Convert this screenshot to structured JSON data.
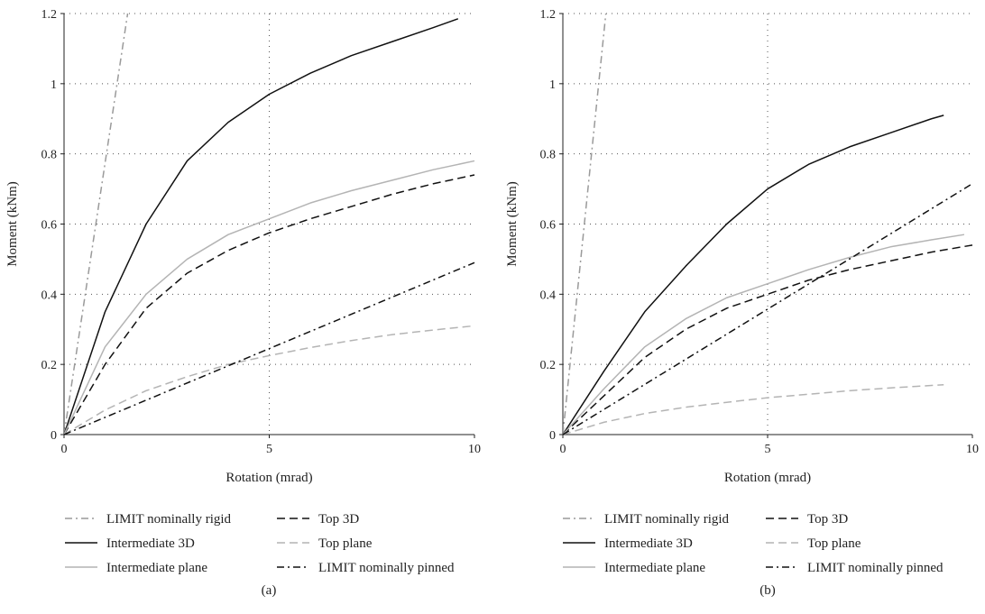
{
  "chart_data": [
    {
      "type": "line",
      "panel_label": "(a)",
      "xlabel": "Rotation (mrad)",
      "ylabel": "Moment (kNm)",
      "xlim": [
        0,
        10
      ],
      "ylim": [
        0,
        1.2
      ],
      "x_ticks": [
        "0",
        "5",
        "10"
      ],
      "y_ticks": [
        "0",
        "0.2",
        "0.4",
        "0.6",
        "0.8",
        "1",
        "1.2"
      ],
      "grid": "dotted at x = 5 and every 0.2 on y",
      "legend_placement": "below",
      "series": [
        {
          "name": "LIMIT nominally rigid",
          "color": "#9a9a9a",
          "dash": "dash-dot",
          "x": [
            0,
            1.55
          ],
          "y": [
            0,
            1.2
          ]
        },
        {
          "name": "Top 3D",
          "color": "#111111",
          "dash": "dashed",
          "x": [
            0,
            1,
            2,
            3,
            4,
            5,
            6,
            7,
            8,
            9,
            10
          ],
          "y": [
            0,
            0.2,
            0.36,
            0.46,
            0.525,
            0.575,
            0.615,
            0.65,
            0.685,
            0.715,
            0.74
          ]
        },
        {
          "name": "Intermediate 3D",
          "color": "#111111",
          "dash": "solid",
          "x": [
            0,
            1,
            2,
            3,
            4,
            5,
            6,
            7,
            8,
            9,
            9.6
          ],
          "y": [
            0,
            0.35,
            0.6,
            0.78,
            0.89,
            0.97,
            1.03,
            1.08,
            1.12,
            1.16,
            1.185
          ]
        },
        {
          "name": "Top plane",
          "color": "#b4b4b4",
          "dash": "dashed",
          "x": [
            0,
            1,
            2,
            3,
            4,
            5,
            6,
            7,
            8,
            9,
            10
          ],
          "y": [
            0,
            0.07,
            0.125,
            0.165,
            0.2,
            0.225,
            0.248,
            0.268,
            0.285,
            0.298,
            0.31
          ]
        },
        {
          "name": "Intermediate plane",
          "color": "#b4b4b4",
          "dash": "solid",
          "x": [
            0,
            1,
            2,
            3,
            4,
            5,
            6,
            7,
            8,
            9,
            10
          ],
          "y": [
            0,
            0.25,
            0.4,
            0.5,
            0.57,
            0.615,
            0.66,
            0.695,
            0.725,
            0.755,
            0.78
          ]
        },
        {
          "name": "LIMIT nominally pinned",
          "color": "#111111",
          "dash": "dash-dot",
          "x": [
            0,
            10
          ],
          "y": [
            0,
            0.49
          ]
        }
      ]
    },
    {
      "type": "line",
      "panel_label": "(b)",
      "xlabel": "Rotation (mrad)",
      "ylabel": "Moment (kNm)",
      "xlim": [
        0,
        10
      ],
      "ylim": [
        0,
        1.2
      ],
      "x_ticks": [
        "0",
        "5",
        "10"
      ],
      "y_ticks": [
        "0",
        "0.2",
        "0.4",
        "0.6",
        "0.8",
        "1",
        "1.2"
      ],
      "grid": "dotted at x = 5 and every 0.2 on y",
      "legend_placement": "below",
      "series": [
        {
          "name": "LIMIT nominally rigid",
          "color": "#9a9a9a",
          "dash": "dash-dot",
          "x": [
            0,
            1.05
          ],
          "y": [
            0,
            1.2
          ]
        },
        {
          "name": "Top 3D",
          "color": "#111111",
          "dash": "dashed",
          "x": [
            0,
            1,
            2,
            3,
            4,
            5,
            6,
            7,
            8,
            9,
            10
          ],
          "y": [
            0,
            0.11,
            0.22,
            0.3,
            0.36,
            0.4,
            0.44,
            0.47,
            0.495,
            0.52,
            0.54
          ]
        },
        {
          "name": "Intermediate 3D",
          "color": "#111111",
          "dash": "solid",
          "x": [
            0,
            1,
            2,
            3,
            4,
            5,
            6,
            7,
            8,
            9,
            9.3
          ],
          "y": [
            0,
            0.18,
            0.35,
            0.48,
            0.6,
            0.7,
            0.77,
            0.82,
            0.86,
            0.9,
            0.91
          ]
        },
        {
          "name": "Top plane",
          "color": "#b4b4b4",
          "dash": "dashed",
          "x": [
            0,
            1,
            2,
            3,
            4,
            5,
            6,
            7,
            8,
            9,
            9.3
          ],
          "y": [
            0,
            0.035,
            0.06,
            0.078,
            0.092,
            0.105,
            0.115,
            0.125,
            0.133,
            0.14,
            0.142
          ]
        },
        {
          "name": "Intermediate plane",
          "color": "#b4b4b4",
          "dash": "solid",
          "x": [
            0,
            1,
            2,
            3,
            4,
            5,
            6,
            7,
            8,
            9,
            9.8
          ],
          "y": [
            0,
            0.13,
            0.25,
            0.33,
            0.39,
            0.43,
            0.47,
            0.505,
            0.535,
            0.555,
            0.57
          ]
        },
        {
          "name": "LIMIT nominally pinned",
          "color": "#111111",
          "dash": "dash-dot",
          "x": [
            0,
            10
          ],
          "y": [
            0,
            0.715
          ]
        }
      ]
    }
  ]
}
